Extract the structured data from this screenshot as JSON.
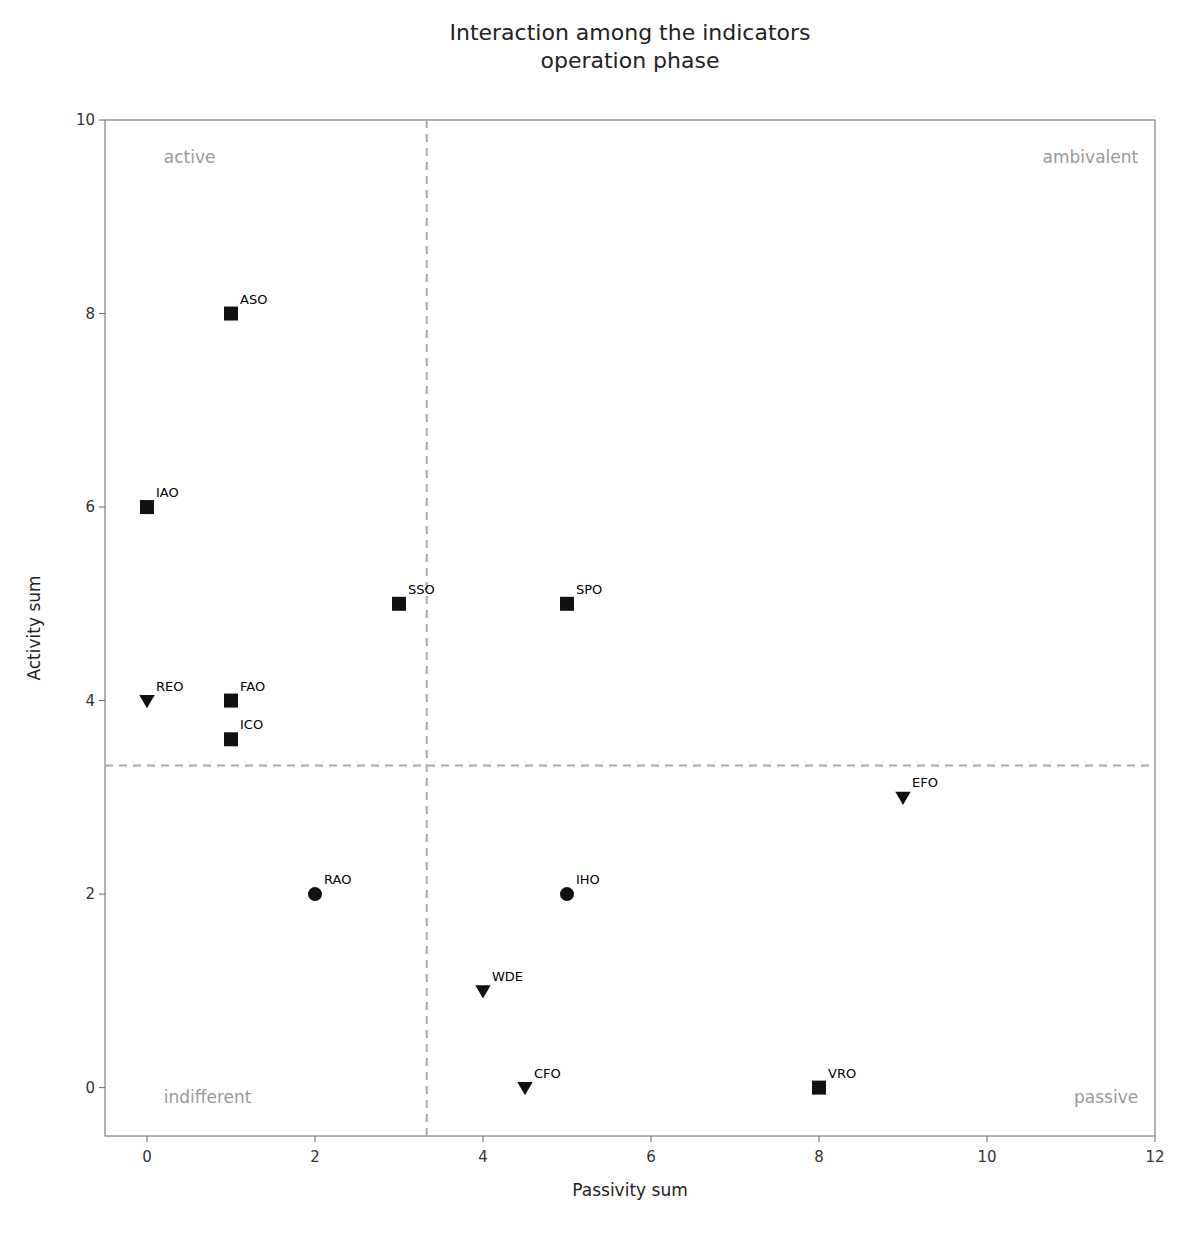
{
  "chart_data": {
    "type": "scatter",
    "title": "Interaction among the indicators\noperation phase",
    "x_label": "Passivity sum",
    "y_label": "Activity sum",
    "xlim": [
      -0.5,
      12
    ],
    "ylim": [
      -0.5,
      10
    ],
    "xticks": [
      0,
      2,
      4,
      6,
      8,
      10,
      12
    ],
    "yticks": [
      0,
      2,
      4,
      6,
      8,
      10
    ],
    "grid": false,
    "color": "#111111",
    "vlines": [
      3.33
    ],
    "hlines": [
      3.33
    ],
    "annotations": [
      {
        "text": "active",
        "x": 0.2,
        "y": 9.7
      },
      {
        "text": "ambivalent",
        "x": 11.8,
        "y": 9.7
      },
      {
        "text": "indifferent",
        "x": 0.2,
        "y": -0.2
      },
      {
        "text": "passive",
        "x": 11.8,
        "y": -0.2
      }
    ],
    "series": [
      {
        "name": "ASO",
        "marker": "square",
        "x": [
          1
        ],
        "values": [
          8
        ]
      },
      {
        "name": "IAO",
        "marker": "square",
        "x": [
          0
        ],
        "values": [
          6
        ]
      },
      {
        "name": "SSO",
        "marker": "square",
        "x": [
          3
        ],
        "values": [
          5
        ]
      },
      {
        "name": "SPO",
        "marker": "square",
        "x": [
          5
        ],
        "values": [
          5
        ]
      },
      {
        "name": "REO",
        "marker": "triangle-down",
        "x": [
          0
        ],
        "values": [
          4
        ]
      },
      {
        "name": "FAO",
        "marker": "square",
        "x": [
          1
        ],
        "values": [
          4
        ]
      },
      {
        "name": "ICO",
        "marker": "square",
        "x": [
          1
        ],
        "values": [
          3.6
        ]
      },
      {
        "name": "EFO",
        "marker": "triangle-down",
        "x": [
          9
        ],
        "values": [
          3
        ]
      },
      {
        "name": "RAO",
        "marker": "circle",
        "x": [
          2
        ],
        "values": [
          2
        ]
      },
      {
        "name": "IHO",
        "marker": "circle",
        "x": [
          5
        ],
        "values": [
          2
        ]
      },
      {
        "name": "WDE",
        "marker": "triangle-down",
        "x": [
          4
        ],
        "values": [
          1
        ]
      },
      {
        "name": "CFO",
        "marker": "triangle-down",
        "x": [
          4.5
        ],
        "values": [
          0
        ]
      },
      {
        "name": "VRO",
        "marker": "square",
        "x": [
          8
        ],
        "values": [
          0
        ]
      }
    ]
  }
}
